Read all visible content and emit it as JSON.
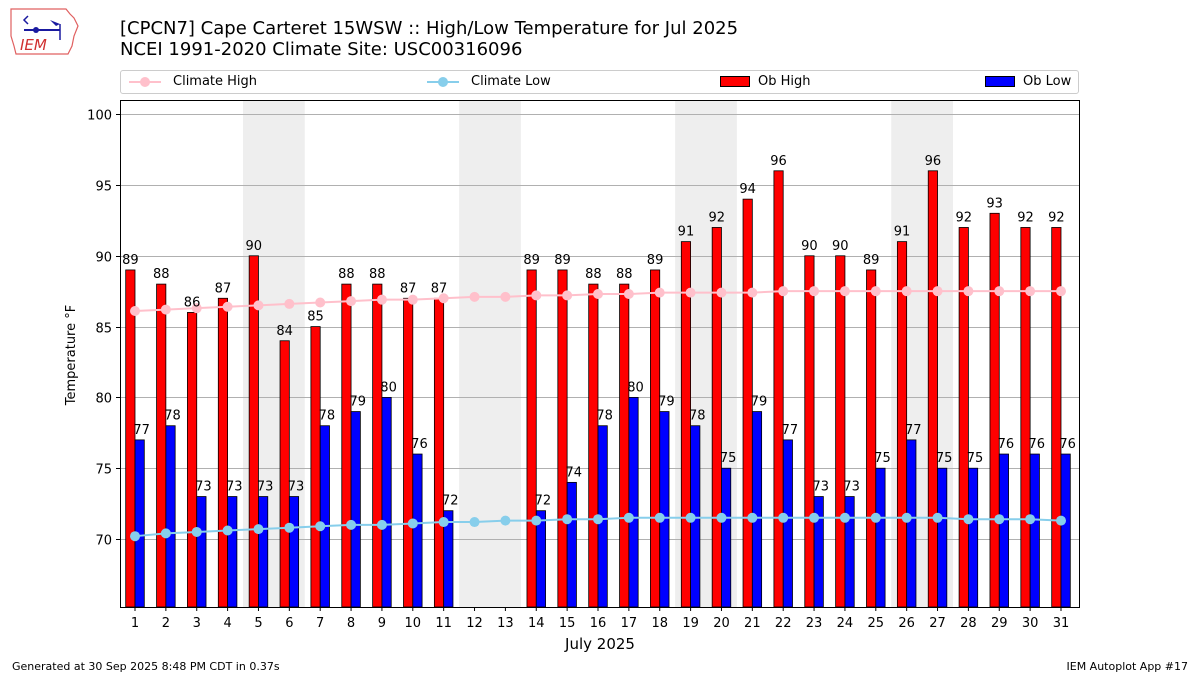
{
  "logo": {
    "text": "IEM"
  },
  "header": {
    "title_line1": "[CPCN7] Cape Carteret 15WSW :: High/Low Temperature for Jul 2025",
    "title_line2": "NCEI 1991-2020 Climate Site: USC00316096"
  },
  "legend": {
    "items": [
      {
        "label": "Climate High",
        "color": "#ffc0cb",
        "kind": "line"
      },
      {
        "label": "Climate Low",
        "color": "#87ceeb",
        "kind": "line"
      },
      {
        "label": "Ob High",
        "color": "#ff0000",
        "kind": "bar"
      },
      {
        "label": "Ob Low",
        "color": "#0000ff",
        "kind": "bar"
      }
    ]
  },
  "footer": {
    "left": "Generated at 30 Sep 2025 8:48 PM CDT in 0.37s",
    "right": "IEM Autoplot App #17"
  },
  "chart_data": {
    "type": "bar",
    "title": "[CPCN7] Cape Carteret 15WSW :: High/Low Temperature for Jul 2025",
    "subtitle": "NCEI 1991-2020 Climate Site: USC00316096",
    "xlabel": "July 2025",
    "ylabel": "Temperature °F",
    "ylim": [
      65.2,
      101
    ],
    "yticks": [
      70,
      75,
      80,
      85,
      90,
      95,
      100
    ],
    "grid": true,
    "legend_position": "top",
    "weekend_shading_days": [
      [
        5,
        6
      ],
      [
        12,
        13
      ],
      [
        19,
        20
      ],
      [
        26,
        27
      ]
    ],
    "categories": [
      "1",
      "2",
      "3",
      "4",
      "5",
      "6",
      "7",
      "8",
      "9",
      "10",
      "11",
      "12",
      "13",
      "14",
      "15",
      "16",
      "17",
      "18",
      "19",
      "20",
      "21",
      "22",
      "23",
      "24",
      "25",
      "26",
      "27",
      "28",
      "29",
      "30",
      "31"
    ],
    "series": [
      {
        "name": "Ob High",
        "type": "bar",
        "color": "#ff0000",
        "values": [
          89,
          88,
          86,
          87,
          90,
          84,
          85,
          88,
          88,
          87,
          87,
          null,
          null,
          89,
          89,
          88,
          88,
          89,
          91,
          92,
          94,
          96,
          90,
          90,
          89,
          91,
          96,
          92,
          93,
          92,
          92
        ]
      },
      {
        "name": "Ob Low",
        "type": "bar",
        "color": "#0000ff",
        "values": [
          77,
          78,
          73,
          73,
          73,
          73,
          78,
          79,
          80,
          76,
          72,
          null,
          null,
          72,
          74,
          78,
          80,
          79,
          78,
          75,
          79,
          77,
          73,
          73,
          75,
          77,
          75,
          75,
          76,
          76,
          76
        ]
      },
      {
        "name": "Climate High",
        "type": "line",
        "color": "#ffc0cb",
        "values": [
          86.1,
          86.2,
          86.3,
          86.4,
          86.5,
          86.6,
          86.7,
          86.8,
          86.9,
          86.9,
          87.0,
          87.1,
          87.1,
          87.2,
          87.2,
          87.3,
          87.3,
          87.4,
          87.4,
          87.4,
          87.4,
          87.5,
          87.5,
          87.5,
          87.5,
          87.5,
          87.5,
          87.5,
          87.5,
          87.5,
          87.5
        ]
      },
      {
        "name": "Climate Low",
        "type": "line",
        "color": "#87ceeb",
        "values": [
          70.2,
          70.4,
          70.5,
          70.6,
          70.7,
          70.8,
          70.9,
          71.0,
          71.0,
          71.1,
          71.2,
          71.2,
          71.3,
          71.3,
          71.4,
          71.4,
          71.5,
          71.5,
          71.5,
          71.5,
          71.5,
          71.5,
          71.5,
          71.5,
          71.5,
          71.5,
          71.5,
          71.4,
          71.4,
          71.4,
          71.3
        ]
      }
    ]
  }
}
